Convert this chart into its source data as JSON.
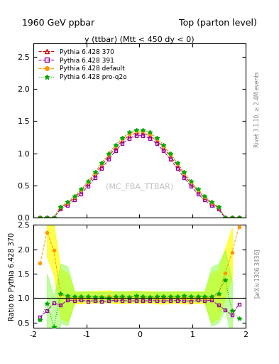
{
  "title_left": "1960 GeV ppbar",
  "title_right": "Top (parton level)",
  "xlabel": "y (ttbar) (Mtt < 450 dy < 0)",
  "ylabel_main": "",
  "ylabel_ratio": "Ratio to Pythia 6.428 370",
  "watermark": "(MC_FBA_TTBAR)",
  "right_label_top": "Rivet 3.1.10, ≥ 2.4M events",
  "right_label_bot": "[arXiv:1306.3436]",
  "xlim": [
    -2.0,
    2.0
  ],
  "ylim_main": [
    0.0,
    2.7
  ],
  "ylim_ratio": [
    0.4,
    2.5
  ],
  "yticks_main": [
    0,
    0.5,
    1.0,
    1.5,
    2.0,
    2.5
  ],
  "yticks_ratio": [
    0.5,
    1.0,
    1.5,
    2.0,
    2.5
  ],
  "series": [
    {
      "label": "Pythia 6.428 370",
      "color": "#cc0000",
      "marker": "^",
      "linestyle": "--",
      "fillstyle": "none",
      "band_color": null
    },
    {
      "label": "Pythia 6.428 391",
      "color": "#990099",
      "marker": "s",
      "linestyle": "--",
      "fillstyle": "none",
      "band_color": null
    },
    {
      "label": "Pythia 6.428 default",
      "color": "#ff9900",
      "marker": "o",
      "linestyle": "--",
      "fillstyle": "full",
      "band_color": "#ffff00"
    },
    {
      "label": "Pythia 6.428 pro-q2o",
      "color": "#00aa00",
      "marker": "*",
      "linestyle": ":",
      "fillstyle": "full",
      "band_color": "#00dd00"
    }
  ]
}
